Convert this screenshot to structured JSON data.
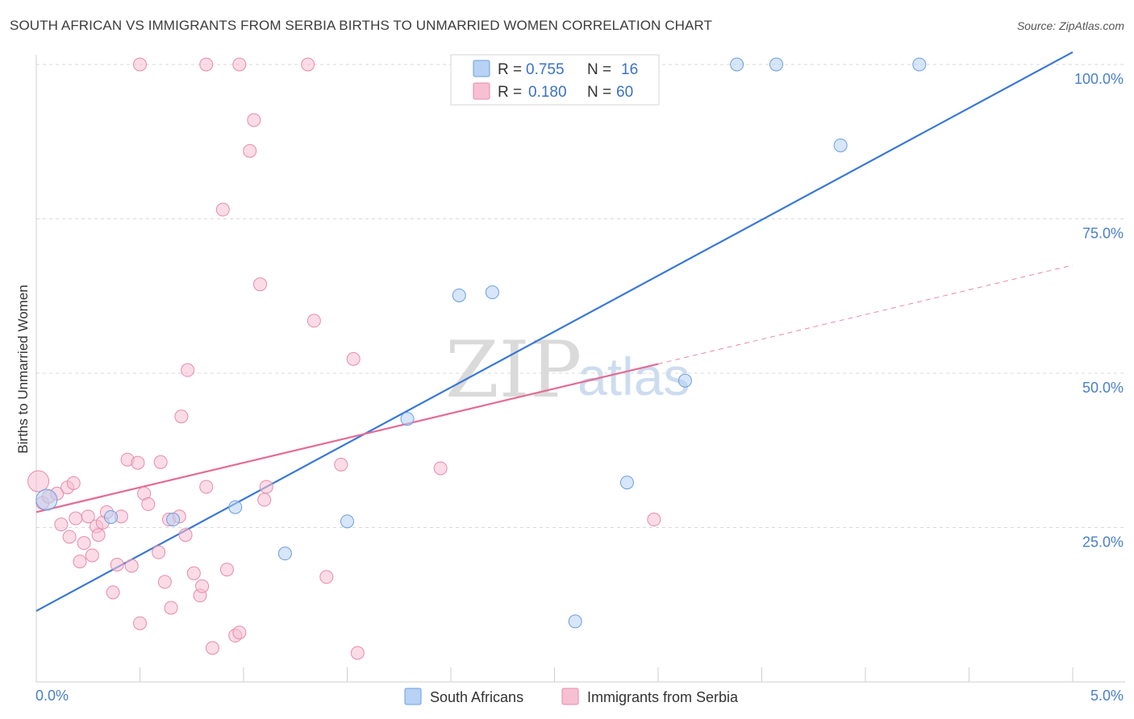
{
  "header": {
    "title": "SOUTH AFRICAN VS IMMIGRANTS FROM SERBIA BIRTHS TO UNMARRIED WOMEN CORRELATION CHART",
    "source": "Source: ZipAtlas.com"
  },
  "watermark": {
    "zip": "ZIP",
    "atlas": "atlas"
  },
  "legend": {
    "series1": {
      "r_label": "R =",
      "r_value": "0.755",
      "n_label": "N =",
      "n_value": "16"
    },
    "series2": {
      "r_label": "R =",
      "r_value": "0.180",
      "n_label": "N =",
      "n_value": "60"
    }
  },
  "colors": {
    "blue": "#3a78d4",
    "blue_fill": "#b7d2f4",
    "pink": "#e56a96",
    "pink_fill": "#f7c0d2",
    "grid": "#d8d8d8",
    "axis_label": "#4a7fc8"
  },
  "chart_data": {
    "type": "scatter",
    "title": "SOUTH AFRICAN VS IMMIGRANTS FROM SERBIA BIRTHS TO UNMARRIED WOMEN CORRELATION CHART",
    "xlabel": "",
    "ylabel": "Births to Unmarried Women",
    "xlim": [
      0,
      5
    ],
    "ylim": [
      0,
      100
    ],
    "x_tick_labels": [
      "0.0%",
      "5.0%"
    ],
    "y_ticks": [
      25,
      50,
      75,
      100
    ],
    "y_tick_labels": [
      "25.0%",
      "50.0%",
      "75.0%",
      "100.0%"
    ],
    "legend_position": "top-center",
    "series": [
      {
        "name": "South Africans",
        "R": 0.755,
        "N": 16,
        "points": [
          [
            0.05,
            29.5
          ],
          [
            0.36,
            26.7
          ],
          [
            0.66,
            26.3
          ],
          [
            0.96,
            28.3
          ],
          [
            1.2,
            20.8
          ],
          [
            1.5,
            26.0
          ],
          [
            1.79,
            42.6
          ],
          [
            2.04,
            62.6
          ],
          [
            2.2,
            63.1
          ],
          [
            2.6,
            9.8
          ],
          [
            2.85,
            32.3
          ],
          [
            3.13,
            48.8
          ],
          [
            3.38,
            100.0
          ],
          [
            3.57,
            100.0
          ],
          [
            3.88,
            86.9
          ],
          [
            4.26,
            100.0
          ]
        ],
        "trend": {
          "x0": 0.0,
          "y0": 11.5,
          "x1": 5.0,
          "y1": 102.0
        }
      },
      {
        "name": "Immigrants from Serbia",
        "R": 0.18,
        "N": 60,
        "points": [
          [
            0.01,
            32.5
          ],
          [
            0.03,
            29.0
          ],
          [
            0.06,
            30.0
          ],
          [
            0.1,
            30.5
          ],
          [
            0.12,
            25.5
          ],
          [
            0.15,
            31.5
          ],
          [
            0.16,
            23.5
          ],
          [
            0.18,
            32.2
          ],
          [
            0.19,
            26.5
          ],
          [
            0.21,
            19.5
          ],
          [
            0.23,
            22.5
          ],
          [
            0.25,
            26.8
          ],
          [
            0.27,
            20.5
          ],
          [
            0.29,
            25.2
          ],
          [
            0.3,
            23.8
          ],
          [
            0.32,
            25.8
          ],
          [
            0.34,
            27.5
          ],
          [
            0.37,
            14.5
          ],
          [
            0.39,
            19.0
          ],
          [
            0.41,
            26.8
          ],
          [
            0.44,
            36.0
          ],
          [
            0.46,
            18.8
          ],
          [
            0.49,
            35.5
          ],
          [
            0.5,
            9.5
          ],
          [
            0.52,
            30.5
          ],
          [
            0.54,
            28.8
          ],
          [
            0.59,
            21.0
          ],
          [
            0.6,
            35.6
          ],
          [
            0.62,
            16.2
          ],
          [
            0.64,
            26.3
          ],
          [
            0.65,
            12.0
          ],
          [
            0.69,
            26.8
          ],
          [
            0.7,
            43.0
          ],
          [
            0.72,
            23.8
          ],
          [
            0.73,
            50.5
          ],
          [
            0.76,
            17.6
          ],
          [
            0.79,
            14.0
          ],
          [
            0.8,
            15.5
          ],
          [
            0.82,
            31.6
          ],
          [
            0.85,
            5.5
          ],
          [
            0.9,
            76.5
          ],
          [
            0.92,
            18.2
          ],
          [
            0.96,
            7.5
          ],
          [
            0.98,
            8.0
          ],
          [
            0.98,
            100.0
          ],
          [
            1.03,
            86.0
          ],
          [
            1.05,
            91.0
          ],
          [
            1.08,
            64.4
          ],
          [
            1.1,
            29.5
          ],
          [
            1.11,
            31.6
          ],
          [
            1.31,
            100.0
          ],
          [
            1.34,
            58.5
          ],
          [
            1.4,
            17.0
          ],
          [
            1.47,
            35.2
          ],
          [
            1.53,
            52.3
          ],
          [
            1.55,
            4.7
          ],
          [
            1.95,
            34.6
          ],
          [
            2.98,
            26.3
          ],
          [
            0.5,
            100.0
          ],
          [
            0.82,
            100.0
          ]
        ],
        "trend": {
          "x0": 0.0,
          "y0": 27.5,
          "x1": 3.0,
          "y1": 51.5
        },
        "trend_extension": {
          "x0": 3.0,
          "y0": 51.5,
          "x1": 5.0,
          "y1": 67.5
        }
      }
    ]
  }
}
